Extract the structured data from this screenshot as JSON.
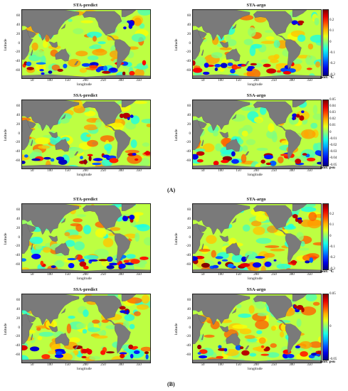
{
  "chart_data": [
    {
      "id": "A-tl",
      "figure": "A",
      "type": "heatmap",
      "title": "STA-predict",
      "xlabel": "longitude",
      "ylabel": "latitude",
      "xticks": [
        "50",
        "100",
        "150",
        "200",
        "250",
        "300",
        "350"
      ],
      "yticks": [
        "60",
        "40",
        "20",
        "0",
        "-20",
        "-40",
        "-60"
      ],
      "xlim": [
        20,
        380
      ],
      "ylim": [
        -75,
        75
      ],
      "colorbar": null
    },
    {
      "id": "A-tr",
      "figure": "A",
      "type": "heatmap",
      "title": "STA-argo",
      "xlabel": "longitude",
      "ylabel": "latitude",
      "xticks": [
        "50",
        "100",
        "150",
        "200",
        "250",
        "300",
        "350"
      ],
      "yticks": [
        "60",
        "40",
        "20",
        "0",
        "-20",
        "-40",
        "-60"
      ],
      "xlim": [
        20,
        380
      ],
      "ylim": [
        -75,
        75
      ],
      "colorbar": {
        "ticks": [
          "0.2",
          "0.1",
          "0",
          "-0.1",
          "-0.2",
          "-0.3"
        ],
        "range": [
          -0.3,
          0.3
        ],
        "unit": "unit: ℃",
        "colormap": "jet"
      }
    },
    {
      "id": "A-bl",
      "figure": "A",
      "type": "heatmap",
      "title": "SSA-predict",
      "xlabel": "longitude",
      "ylabel": "latitude",
      "xticks": [
        "50",
        "100",
        "150",
        "200",
        "250",
        "300",
        "350"
      ],
      "yticks": [
        "60",
        "40",
        "20",
        "0",
        "-20",
        "-40",
        "-60"
      ],
      "xlim": [
        20,
        380
      ],
      "ylim": [
        -75,
        75
      ],
      "colorbar": null
    },
    {
      "id": "A-br",
      "figure": "A",
      "type": "heatmap",
      "title": "SSA-argo",
      "xlabel": "longitude",
      "ylabel": "latitude",
      "xticks": [
        "50",
        "100",
        "150",
        "200",
        "250",
        "300",
        "350"
      ],
      "yticks": [
        "60",
        "40",
        "20",
        "0",
        "-20",
        "-40",
        "-60"
      ],
      "xlim": [
        20,
        380
      ],
      "ylim": [
        -75,
        75
      ],
      "colorbar": {
        "ticks": [
          "0.05",
          "0.04",
          "0.03",
          "0.02",
          "0.01",
          "0",
          "-0.01",
          "-0.02",
          "-0.03",
          "-0.04",
          "-0.05"
        ],
        "range": [
          -0.05,
          0.05
        ],
        "unit": "unit: psu",
        "colormap": "jet"
      }
    },
    {
      "id": "B-tl",
      "figure": "B",
      "type": "heatmap",
      "title": "STA-predict",
      "xlabel": "longitude",
      "ylabel": "latitude",
      "xticks": [
        "50",
        "100",
        "150",
        "200",
        "250",
        "300",
        "350"
      ],
      "yticks": [
        "60",
        "40",
        "20",
        "0",
        "-20",
        "-40",
        "-60"
      ],
      "xlim": [
        20,
        380
      ],
      "ylim": [
        -75,
        75
      ],
      "colorbar": null
    },
    {
      "id": "B-tr",
      "figure": "B",
      "type": "heatmap",
      "title": "STA-argo",
      "xlabel": "longitude",
      "ylabel": "latitude",
      "xticks": [
        "50",
        "100",
        "150",
        "200",
        "250",
        "300",
        "350"
      ],
      "yticks": [
        "60",
        "40",
        "20",
        "0",
        "-20",
        "-40",
        "-60"
      ],
      "xlim": [
        20,
        380
      ],
      "ylim": [
        -75,
        75
      ],
      "colorbar": {
        "ticks": [
          "0.2",
          "0.1",
          "0",
          "-0.1",
          "-0.2",
          "-0.3"
        ],
        "range": [
          -0.3,
          0.3
        ],
        "unit": "unit: ℃",
        "colormap": "jet"
      }
    },
    {
      "id": "B-bl",
      "figure": "B",
      "type": "heatmap",
      "title": "SSA-predict",
      "xlabel": "longitude",
      "ylabel": "latitude",
      "xticks": [
        "50",
        "100",
        "150",
        "200",
        "250",
        "300",
        "350"
      ],
      "yticks": [
        "60",
        "40",
        "20",
        "0",
        "-20",
        "-40",
        "-60"
      ],
      "xlim": [
        20,
        380
      ],
      "ylim": [
        -75,
        75
      ],
      "colorbar": null
    },
    {
      "id": "B-br",
      "figure": "B",
      "type": "heatmap",
      "title": "SSA-argo",
      "xlabel": "longitude",
      "ylabel": "latitude",
      "xticks": [
        "50",
        "100",
        "150",
        "200",
        "250",
        "300",
        "350"
      ],
      "yticks": [
        "60",
        "40",
        "20",
        "0",
        "-20",
        "-40",
        "-60"
      ],
      "xlim": [
        20,
        380
      ],
      "ylim": [
        -75,
        75
      ],
      "colorbar": {
        "ticks": [
          "0.05",
          "0",
          "-0.05"
        ],
        "range": [
          -0.05,
          0.05
        ],
        "unit": "unit: psu",
        "colormap": "jet"
      }
    }
  ],
  "figure_labels": {
    "a": "(A)",
    "b": "(B)"
  },
  "colors": {
    "land": "#7a7a7a",
    "ocean_base": "#7fdc8a"
  }
}
